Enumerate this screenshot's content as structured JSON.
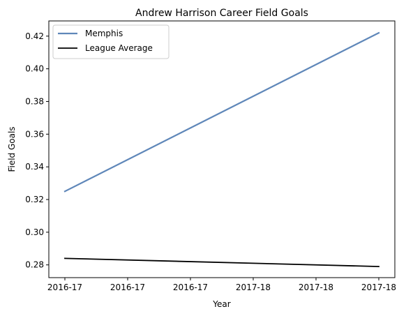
{
  "chart_data": {
    "type": "line",
    "title": "Andrew Harrison  Career Field Goals",
    "xlabel": "Year",
    "ylabel": "Field Goals",
    "x_tick_labels": [
      "2016-17",
      "2016-17",
      "2016-17",
      "2017-18",
      "2017-18",
      "2017-18"
    ],
    "y_ticks": [
      0.28,
      0.3,
      0.32,
      0.34,
      0.36,
      0.38,
      0.4,
      0.42
    ],
    "y_tick_labels": [
      "0.28",
      "0.30",
      "0.32",
      "0.34",
      "0.36",
      "0.38",
      "0.40",
      "0.42"
    ],
    "x": [
      "2016-17",
      "2017-18"
    ],
    "ylim": [
      0.2722,
      0.4293
    ],
    "grid": false,
    "legend_placement": "top-left",
    "series": [
      {
        "name": "Memphis",
        "values": [
          0.325,
          0.422
        ],
        "color": "#5f87b9"
      },
      {
        "name": "League Average",
        "values": [
          0.284,
          0.279
        ],
        "color": "#000000"
      }
    ]
  }
}
